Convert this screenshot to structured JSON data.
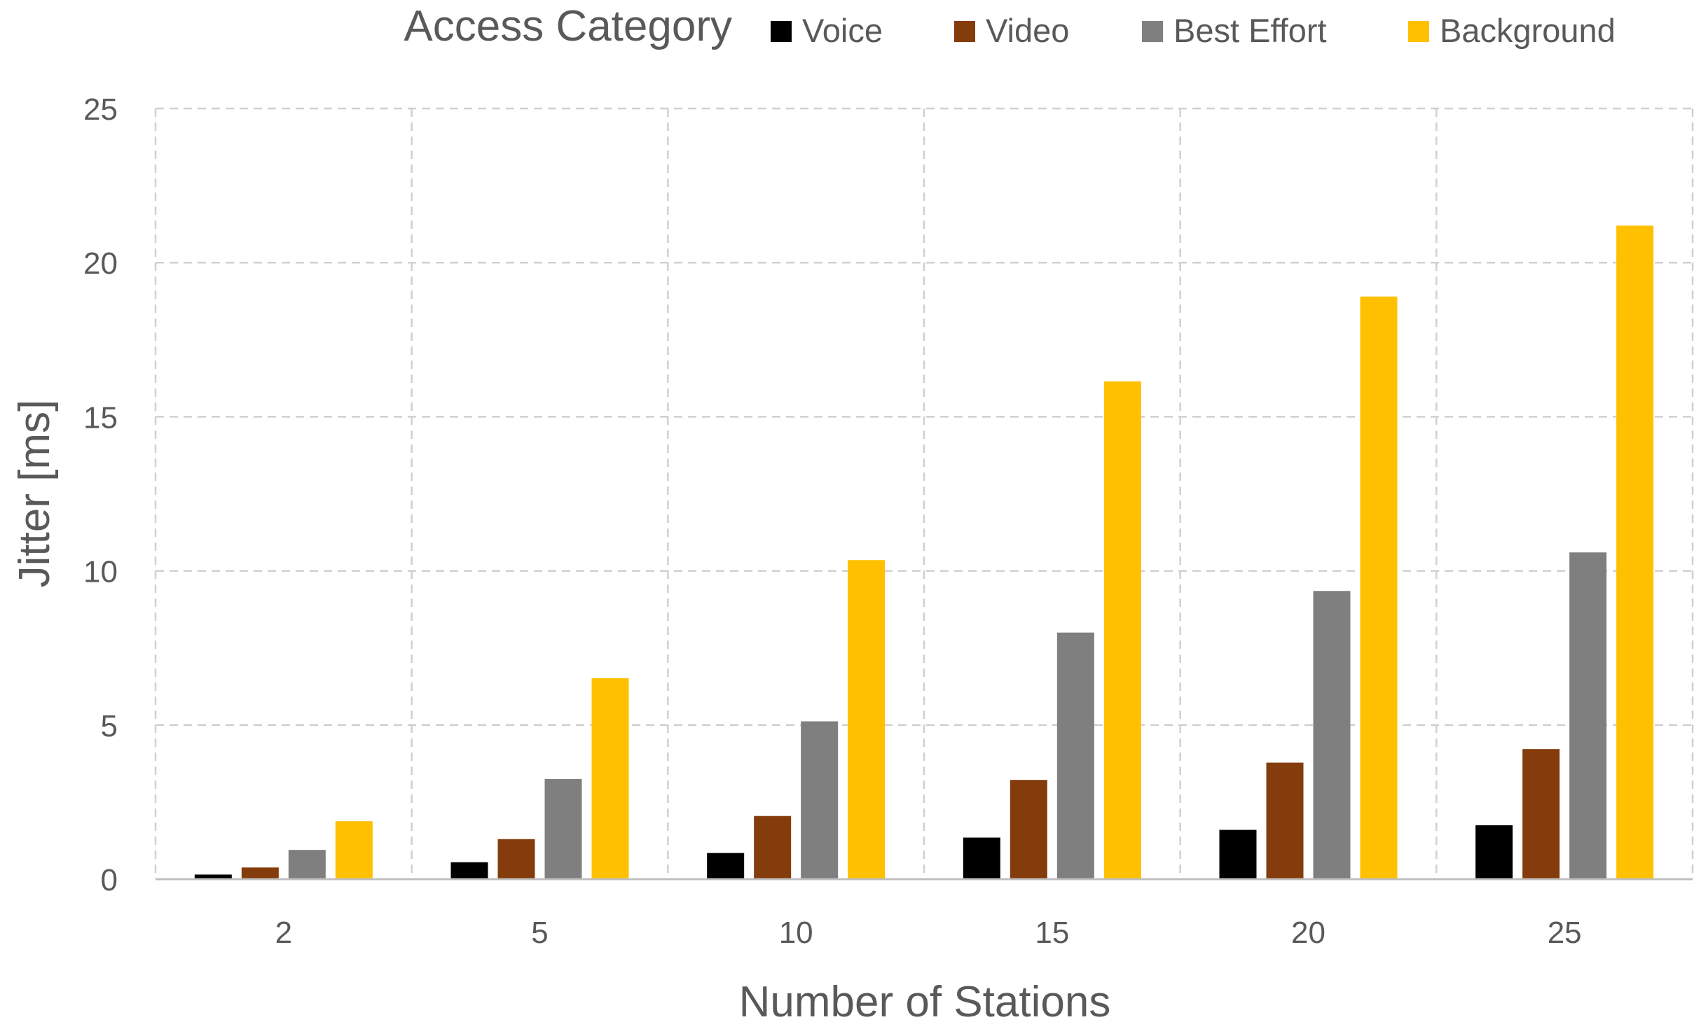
{
  "chart_data": {
    "type": "bar",
    "title": "",
    "xlabel": "Number of Stations",
    "ylabel": "Jitter [ms]",
    "ylim": [
      0,
      25
    ],
    "yticks": [
      0,
      5,
      10,
      15,
      20,
      25
    ],
    "grid": true,
    "legend": {
      "title": "Access Category",
      "placement": "top"
    },
    "categories": [
      "2",
      "5",
      "10",
      "15",
      "20",
      "25"
    ],
    "series": [
      {
        "name": "Voice",
        "color": "#000000",
        "values": [
          0.15,
          0.55,
          0.85,
          1.35,
          1.6,
          1.75
        ]
      },
      {
        "name": "Video",
        "color": "#843c0c",
        "values": [
          0.38,
          1.3,
          2.05,
          3.22,
          3.78,
          4.22
        ]
      },
      {
        "name": "Best Effort",
        "color": "#7f7f7f",
        "values": [
          0.95,
          3.25,
          5.12,
          8.0,
          9.35,
          10.6
        ]
      },
      {
        "name": "Background",
        "color": "#ffc000",
        "values": [
          1.88,
          6.52,
          10.35,
          16.15,
          18.9,
          21.2
        ]
      }
    ]
  }
}
